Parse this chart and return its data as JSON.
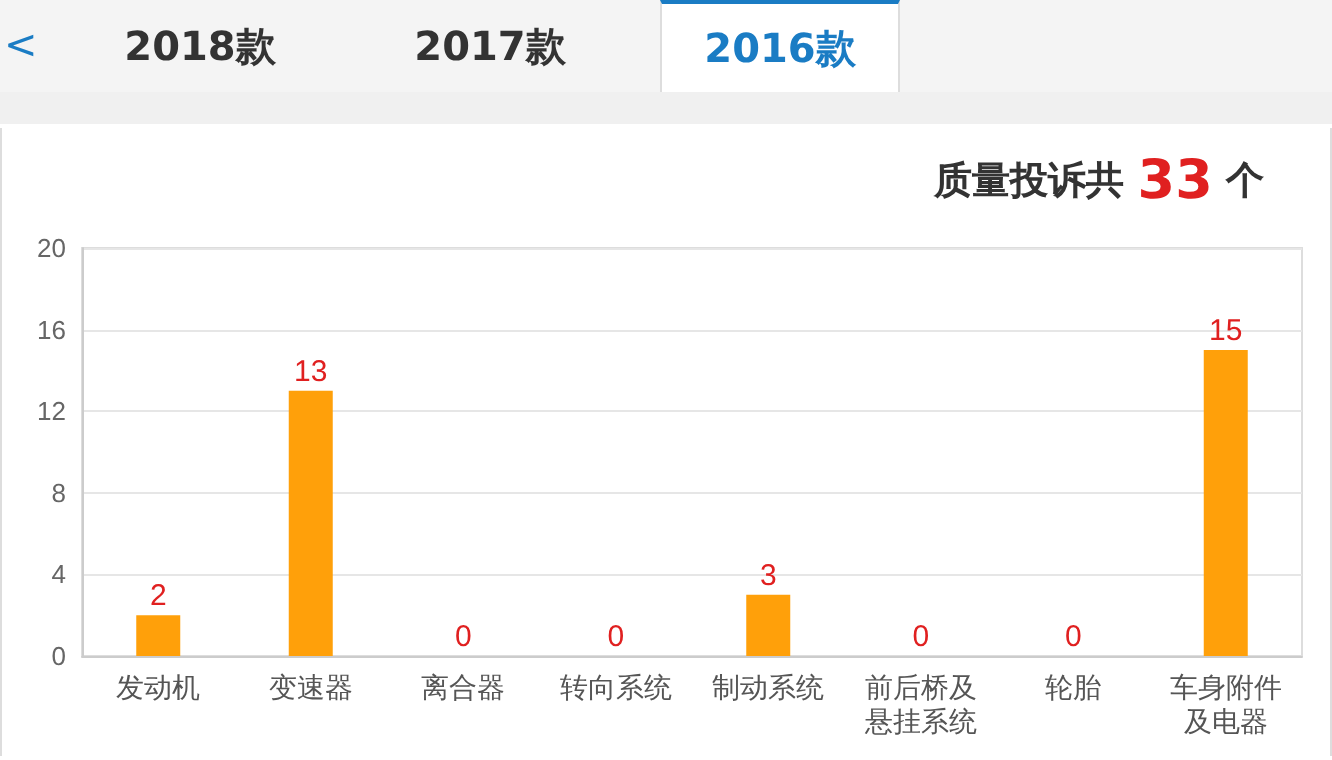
{
  "chart_data": {
    "type": "bar",
    "title": "质量投诉共 33 个",
    "annotations": [
      "<",
      "2018款",
      "2017款",
      "2016款"
    ],
    "categories": [
      "发动机",
      "变速器",
      "离合器",
      "转向系统",
      "制动系统",
      "前后桥及悬挂系统",
      "轮胎",
      "车身附件及电器"
    ],
    "values": [
      2,
      13,
      0,
      0,
      3,
      0,
      0,
      15
    ],
    "color": "#ffa00a",
    "ylim": [
      0,
      20
    ],
    "yticks": [
      0,
      4,
      8,
      12,
      16,
      20
    ],
    "grid": "y",
    "data_labels": true
  }
}
